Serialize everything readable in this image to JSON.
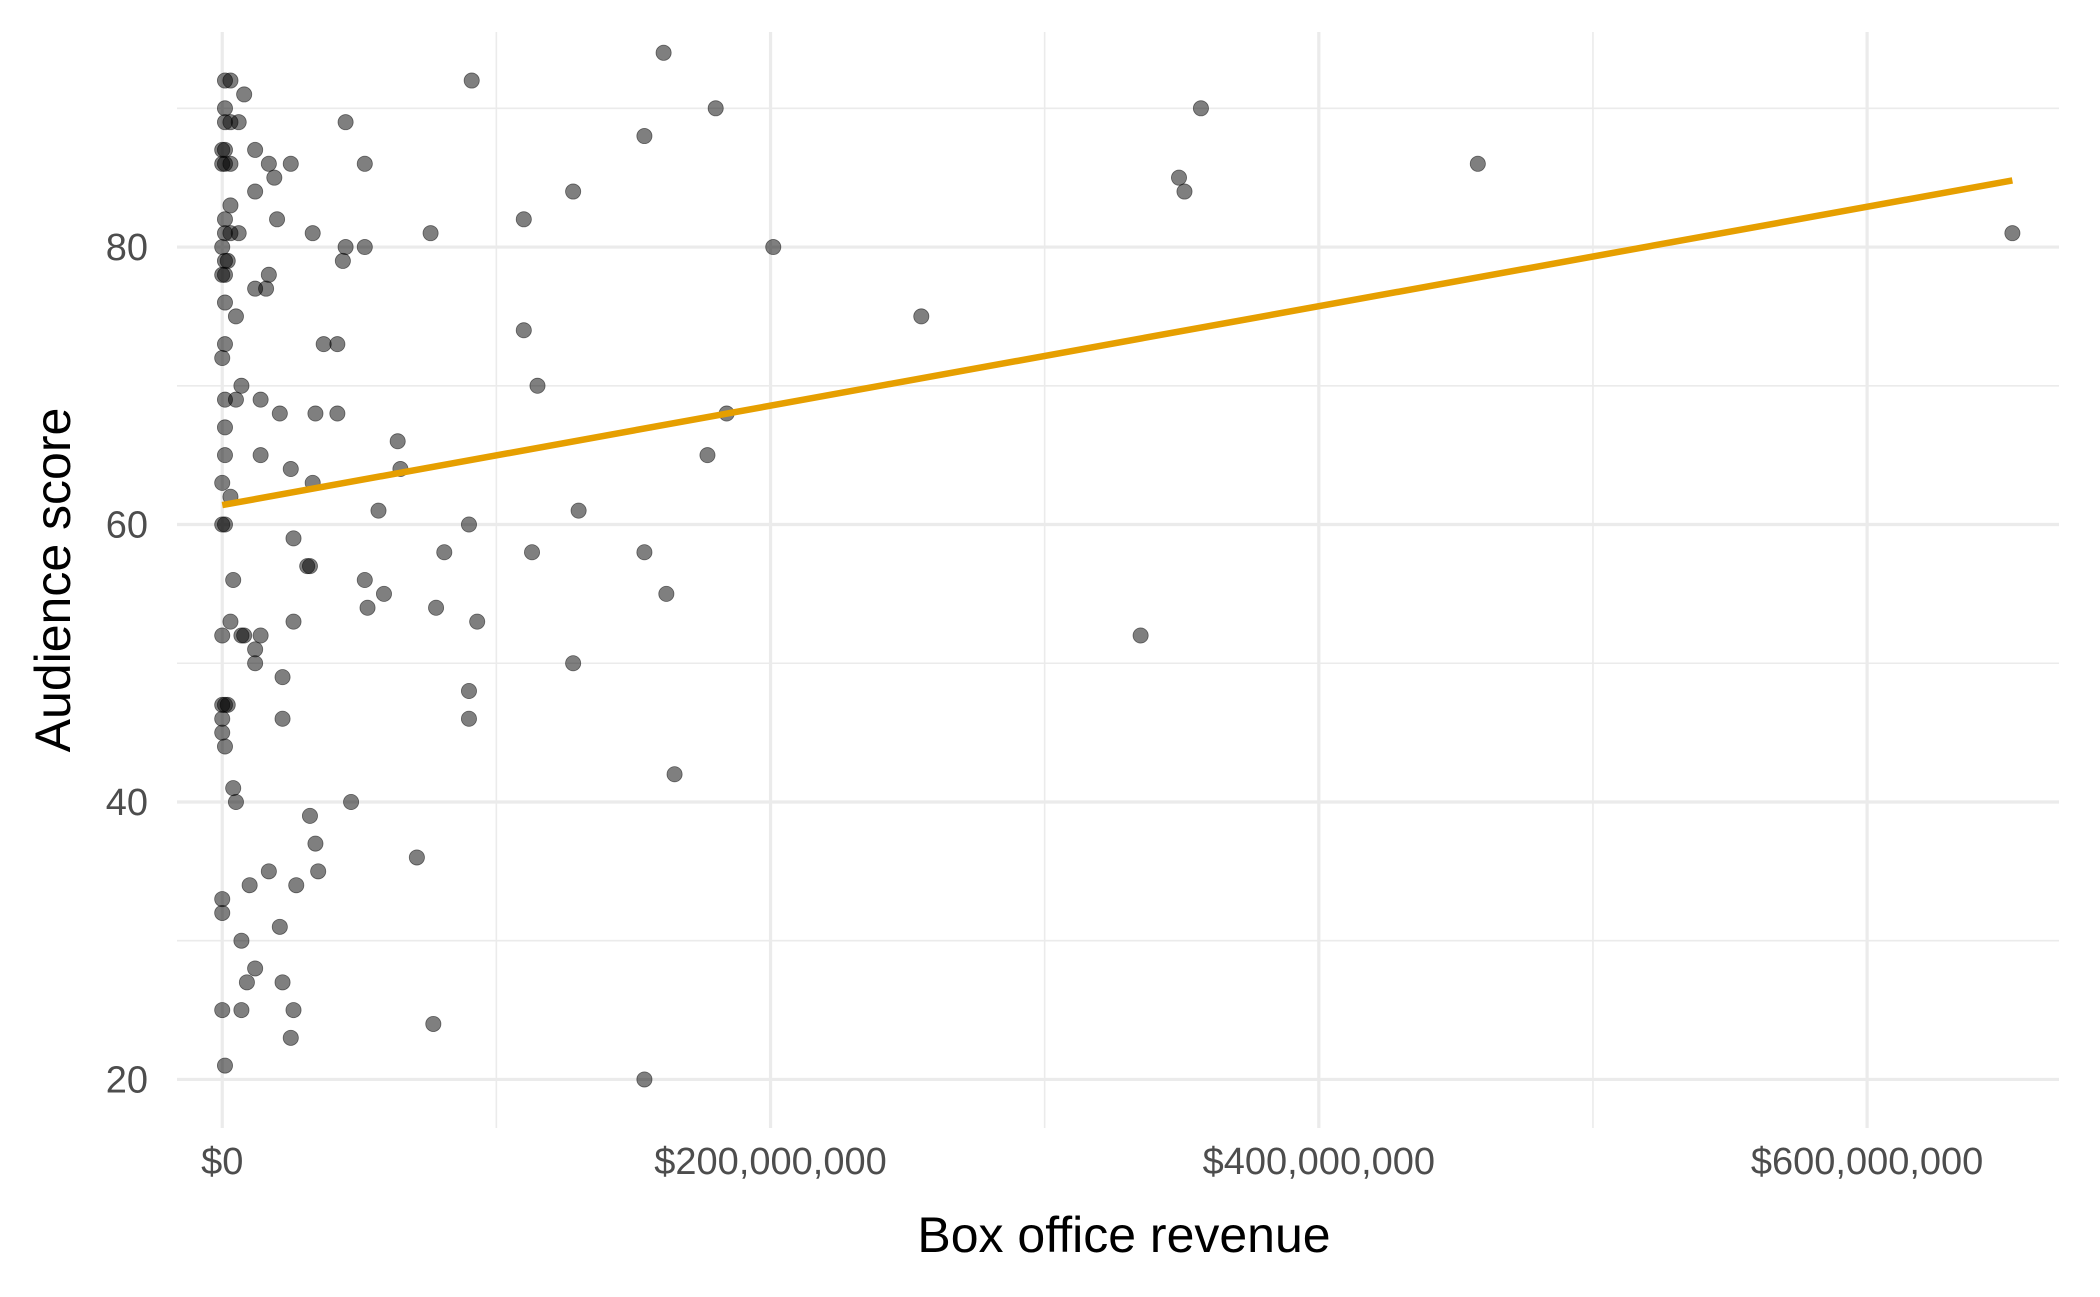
{
  "chart_data": {
    "type": "scatter",
    "xlabel": "Box office revenue",
    "ylabel": "Audience score",
    "xlim": [
      -16500000,
      670000000
    ],
    "ylim": [
      16.5,
      95.5
    ],
    "x_ticks": [
      0,
      200000000,
      400000000,
      600000000
    ],
    "x_tick_labels": [
      "$0",
      "$200,000,000",
      "$400,000,000",
      "$600,000,000"
    ],
    "x_minor_ticks": [
      100000000,
      300000000,
      500000000
    ],
    "y_ticks": [
      20,
      40,
      60,
      80
    ],
    "y_tick_labels": [
      "20",
      "40",
      "60",
      "80"
    ],
    "y_minor_ticks": [
      30,
      50,
      70,
      90
    ],
    "grid": true,
    "point_color": "#000000",
    "point_opacity": 0.5,
    "trend_color": "#E69F00",
    "trend_line": {
      "x": [
        0,
        653000000
      ],
      "y": [
        61.4,
        84.8
      ]
    },
    "points": [
      [
        1000000,
        92
      ],
      [
        3000000,
        92
      ],
      [
        1000000,
        90
      ],
      [
        8000000,
        91
      ],
      [
        91000000,
        92
      ],
      [
        161000000,
        94
      ],
      [
        180000000,
        90
      ],
      [
        357000000,
        90
      ],
      [
        1000000,
        89
      ],
      [
        3000000,
        89
      ],
      [
        6000000,
        89
      ],
      [
        45000000,
        89
      ],
      [
        154000000,
        88
      ],
      [
        12000000,
        87
      ],
      [
        1000000,
        87
      ],
      [
        0,
        87
      ],
      [
        0,
        86
      ],
      [
        1000000,
        86
      ],
      [
        3000000,
        86
      ],
      [
        17000000,
        86
      ],
      [
        25000000,
        86
      ],
      [
        52000000,
        86
      ],
      [
        458000000,
        86
      ],
      [
        349000000,
        85
      ],
      [
        19000000,
        85
      ],
      [
        351000000,
        84
      ],
      [
        12000000,
        84
      ],
      [
        128000000,
        84
      ],
      [
        3000000,
        83
      ],
      [
        1000000,
        82
      ],
      [
        20000000,
        82
      ],
      [
        110000000,
        82
      ],
      [
        1000000,
        81
      ],
      [
        3000000,
        81
      ],
      [
        6000000,
        81
      ],
      [
        33000000,
        81
      ],
      [
        76000000,
        81
      ],
      [
        653000000,
        81
      ],
      [
        0,
        80
      ],
      [
        45000000,
        80
      ],
      [
        52000000,
        80
      ],
      [
        201000000,
        80
      ],
      [
        1000000,
        79
      ],
      [
        2000000,
        79
      ],
      [
        44000000,
        79
      ],
      [
        0,
        78
      ],
      [
        1000000,
        78
      ],
      [
        17000000,
        78
      ],
      [
        12000000,
        77
      ],
      [
        16000000,
        77
      ],
      [
        1000000,
        76
      ],
      [
        5000000,
        75
      ],
      [
        255000000,
        75
      ],
      [
        110000000,
        74
      ],
      [
        1000000,
        73
      ],
      [
        37000000,
        73
      ],
      [
        42000000,
        73
      ],
      [
        0,
        72
      ],
      [
        7000000,
        70
      ],
      [
        115000000,
        70
      ],
      [
        1000000,
        69
      ],
      [
        5000000,
        69
      ],
      [
        14000000,
        69
      ],
      [
        21000000,
        68
      ],
      [
        34000000,
        68
      ],
      [
        42000000,
        68
      ],
      [
        184000000,
        68
      ],
      [
        1000000,
        67
      ],
      [
        64000000,
        66
      ],
      [
        1000000,
        65
      ],
      [
        14000000,
        65
      ],
      [
        177000000,
        65
      ],
      [
        25000000,
        64
      ],
      [
        65000000,
        64
      ],
      [
        0,
        63
      ],
      [
        33000000,
        63
      ],
      [
        3000000,
        62
      ],
      [
        57000000,
        61
      ],
      [
        130000000,
        61
      ],
      [
        0,
        60
      ],
      [
        1000000,
        60
      ],
      [
        90000000,
        60
      ],
      [
        26000000,
        59
      ],
      [
        81000000,
        58
      ],
      [
        113000000,
        58
      ],
      [
        154000000,
        58
      ],
      [
        31000000,
        57
      ],
      [
        32000000,
        57
      ],
      [
        4000000,
        56
      ],
      [
        52000000,
        56
      ],
      [
        59000000,
        55
      ],
      [
        162000000,
        55
      ],
      [
        53000000,
        54
      ],
      [
        78000000,
        54
      ],
      [
        3000000,
        53
      ],
      [
        26000000,
        53
      ],
      [
        93000000,
        53
      ],
      [
        0,
        52
      ],
      [
        7000000,
        52
      ],
      [
        8000000,
        52
      ],
      [
        14000000,
        52
      ],
      [
        335000000,
        52
      ],
      [
        12000000,
        51
      ],
      [
        12000000,
        50
      ],
      [
        128000000,
        50
      ],
      [
        22000000,
        49
      ],
      [
        90000000,
        48
      ],
      [
        0,
        47
      ],
      [
        1000000,
        47
      ],
      [
        2000000,
        47
      ],
      [
        0,
        46
      ],
      [
        22000000,
        46
      ],
      [
        90000000,
        46
      ],
      [
        0,
        45
      ],
      [
        1000000,
        44
      ],
      [
        165000000,
        42
      ],
      [
        4000000,
        41
      ],
      [
        5000000,
        40
      ],
      [
        47000000,
        40
      ],
      [
        32000000,
        39
      ],
      [
        34000000,
        37
      ],
      [
        71000000,
        36
      ],
      [
        17000000,
        35
      ],
      [
        35000000,
        35
      ],
      [
        10000000,
        34
      ],
      [
        27000000,
        34
      ],
      [
        0,
        33
      ],
      [
        0,
        32
      ],
      [
        21000000,
        31
      ],
      [
        7000000,
        30
      ],
      [
        12000000,
        28
      ],
      [
        9000000,
        27
      ],
      [
        22000000,
        27
      ],
      [
        0,
        25
      ],
      [
        7000000,
        25
      ],
      [
        26000000,
        25
      ],
      [
        77000000,
        24
      ],
      [
        25000000,
        23
      ],
      [
        1000000,
        21
      ],
      [
        154000000,
        20
      ]
    ]
  }
}
